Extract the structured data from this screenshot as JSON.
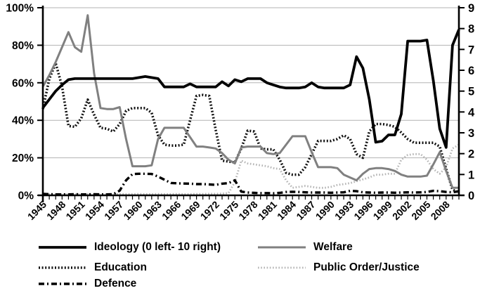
{
  "chart_data": {
    "type": "line",
    "title": "",
    "background": "#ffffff",
    "grid_color": "#b3b3b3",
    "grid": true,
    "legend_position": "bottom",
    "x_axis": {
      "start": 1945,
      "end": 2010,
      "tick_interval": 1,
      "label_interval": 3,
      "tick_labels": [
        "1945",
        "1948",
        "1951",
        "1954",
        "1957",
        "1960",
        "1963",
        "1966",
        "1969",
        "1972",
        "1975",
        "1978",
        "1981",
        "1984",
        "1987",
        "1990",
        "1993",
        "1996",
        "1999",
        "2002",
        "2005",
        "2008"
      ]
    },
    "y_axis_left": {
      "min": 0,
      "max": 100,
      "unit": "%",
      "tick_labels": [
        "0%",
        "20%",
        "40%",
        "60%",
        "80%",
        "100%"
      ],
      "tick_values": [
        0,
        20,
        40,
        60,
        80,
        100
      ]
    },
    "y_axis_right": {
      "min": 0,
      "max": 9,
      "tick_labels": [
        "0",
        "1",
        "2",
        "3",
        "4",
        "5",
        "6",
        "7",
        "8",
        "9"
      ],
      "tick_values": [
        0,
        1,
        2,
        3,
        4,
        5,
        6,
        7,
        8,
        9
      ]
    },
    "series": [
      {
        "name": "Ideology (0 left- 10 right)",
        "axis": "right",
        "color": "#000000",
        "style": "solid-thick",
        "values": [
          4.2,
          4.6,
          5.0,
          5.3,
          5.55,
          5.6,
          5.6,
          5.6,
          5.6,
          5.6,
          5.6,
          5.6,
          5.6,
          5.6,
          5.6,
          5.65,
          5.7,
          5.65,
          5.6,
          5.2,
          5.2,
          5.2,
          5.2,
          5.35,
          5.2,
          5.2,
          5.2,
          5.2,
          5.45,
          5.25,
          5.55,
          5.45,
          5.6,
          5.6,
          5.6,
          5.4,
          5.3,
          5.2,
          5.15,
          5.15,
          5.15,
          5.2,
          5.4,
          5.2,
          5.15,
          5.15,
          5.15,
          5.15,
          5.3,
          6.65,
          6.1,
          4.6,
          2.55,
          2.6,
          2.9,
          2.9,
          3.9,
          7.4,
          7.4,
          7.4,
          7.45,
          5.5,
          3.2,
          2.3,
          7.2,
          7.95
        ]
      },
      {
        "name": "Welfare",
        "axis": "left",
        "color": "#808080",
        "style": "solid",
        "values": [
          58,
          64,
          71,
          79,
          87,
          79,
          76.5,
          96,
          65,
          46.5,
          46,
          46,
          47,
          30,
          15.5,
          15.5,
          15.5,
          16,
          30,
          36,
          36,
          36,
          36,
          31,
          26,
          26,
          25.5,
          25,
          22.5,
          19,
          17,
          25.5,
          26,
          26,
          26,
          22.5,
          22,
          22.5,
          27,
          31.5,
          31.5,
          31.5,
          23,
          15,
          15,
          15,
          14.5,
          11,
          9.5,
          8,
          11.5,
          14,
          14.5,
          14.5,
          14,
          13,
          11,
          10,
          10,
          10,
          10.5,
          16.5,
          23,
          13,
          4,
          4
        ]
      },
      {
        "name": "Education",
        "axis": "left",
        "color": "#111111",
        "style": "dotted",
        "values": [
          46,
          62,
          70.5,
          58,
          37,
          36.5,
          41,
          51,
          43,
          36,
          35.5,
          34,
          38,
          45,
          46.5,
          46.5,
          46.5,
          44,
          32,
          27,
          26.5,
          26.5,
          27,
          40,
          53,
          53.5,
          53,
          35,
          18.5,
          18,
          17.5,
          25,
          34.5,
          34,
          25,
          24.5,
          24.5,
          19,
          12,
          11,
          11,
          15,
          22,
          29,
          29,
          29,
          30,
          32,
          30,
          22,
          20,
          34,
          38,
          38,
          37.5,
          36.5,
          33.5,
          30,
          28,
          28,
          28,
          28,
          26,
          14,
          3,
          1.5
        ]
      },
      {
        "name": "Public Order/Justice",
        "axis": "left",
        "color": "#b5b5b5",
        "style": "dotted-light",
        "values": [
          0.6,
          0.6,
          0.7,
          0.6,
          0.6,
          0.6,
          0.6,
          0.7,
          0.6,
          0.6,
          0.6,
          0.6,
          0.7,
          0.6,
          0.6,
          0.7,
          0.6,
          0.6,
          0.7,
          0.6,
          0.6,
          0.7,
          0.6,
          0.6,
          0.7,
          0.7,
          0.8,
          0.8,
          0.9,
          1.2,
          7,
          18.5,
          17,
          16.5,
          16,
          15.5,
          14.5,
          14,
          8,
          4,
          4.5,
          5,
          4.5,
          4,
          4,
          4.5,
          5.5,
          6,
          6.5,
          7.5,
          8.5,
          9.5,
          11,
          11,
          11.5,
          11.5,
          19,
          21.5,
          22,
          22,
          19,
          14,
          11.5,
          15,
          25,
          27
        ]
      },
      {
        "name": "Defence",
        "axis": "left",
        "color": "#000000",
        "style": "dash-dot",
        "values": [
          0.8,
          0.6,
          0.5,
          0.5,
          0.5,
          0.6,
          0.5,
          0.5,
          0.6,
          0.5,
          0.5,
          0.6,
          2.5,
          8,
          11.3,
          11.5,
          11.5,
          11.4,
          10,
          8.3,
          6.6,
          6.4,
          6.3,
          6.2,
          6,
          6,
          5.8,
          5.6,
          6.2,
          6.5,
          8,
          2,
          1.5,
          1.3,
          1.2,
          1.2,
          1.1,
          1.3,
          1.8,
          1.9,
          1.8,
          1.6,
          1.5,
          1.5,
          1.5,
          1.4,
          1.5,
          1.6,
          2.4,
          2.2,
          1.6,
          1.5,
          1.4,
          1.5,
          1.5,
          1.4,
          1.5,
          1.6,
          1.5,
          1.6,
          1.8,
          2.4,
          2.2,
          1.8,
          1.6,
          2.2
        ]
      }
    ]
  },
  "legend": {
    "items": [
      {
        "label": "Ideology (0 left- 10 right)"
      },
      {
        "label": "Welfare"
      },
      {
        "label": "Education"
      },
      {
        "label": "Public Order/Justice"
      },
      {
        "label": "Defence"
      }
    ]
  }
}
